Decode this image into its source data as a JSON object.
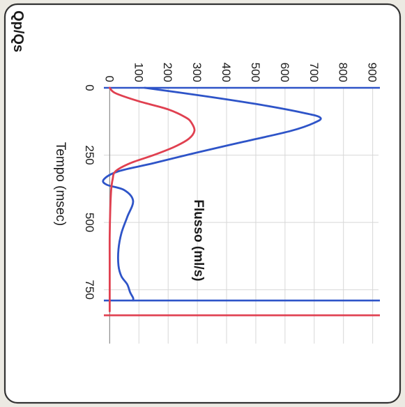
{
  "chart_data": {
    "type": "line",
    "rotated": "90deg-clockwise",
    "title": "Qp/Qs",
    "xlabel": "Tempo (msec)",
    "ylabel": "Flusso (ml/s)",
    "x_ticks": [
      "0",
      "250",
      "500",
      "750"
    ],
    "y_ticks": [
      "0",
      "100",
      "200",
      "300",
      "400",
      "500",
      "600",
      "700",
      "800",
      "900"
    ],
    "xlim": [
      0,
      950
    ],
    "ylim": [
      -20,
      920
    ],
    "grid": true,
    "legend": "none",
    "colors": {
      "blue": "#2e54c8",
      "red": "#e04050",
      "grid": "#d7d7d7",
      "axis": "#909090",
      "frame": "#333333"
    },
    "series": [
      {
        "color": "#2e54c8",
        "x": [
          0,
          30,
          60,
          90,
          110,
          130,
          160,
          200,
          240,
          280,
          310,
          340,
          360,
          380,
          420,
          480,
          540,
          600,
          660,
          700,
          730,
          760,
          780,
          790
        ],
        "y": [
          120,
          320,
          500,
          650,
          720,
          700,
          620,
          460,
          300,
          150,
          30,
          -20,
          -10,
          50,
          80,
          60,
          40,
          30,
          30,
          40,
          60,
          70,
          80,
          80
        ]
      },
      {
        "color": "#e04050",
        "x": [
          0,
          20,
          50,
          80,
          110,
          130,
          160,
          190,
          220,
          250,
          280,
          310,
          340,
          380,
          450,
          550,
          650,
          750,
          800,
          830
        ],
        "y": [
          0,
          20,
          100,
          200,
          260,
          280,
          290,
          270,
          220,
          150,
          70,
          20,
          10,
          5,
          2,
          0,
          0,
          0,
          0,
          0
        ]
      }
    ],
    "vlines": [
      {
        "x": 0,
        "color": "#2e54c8"
      },
      {
        "x": 790,
        "color": "#2e54c8"
      },
      {
        "x": 845,
        "color": "#e04050"
      }
    ]
  }
}
